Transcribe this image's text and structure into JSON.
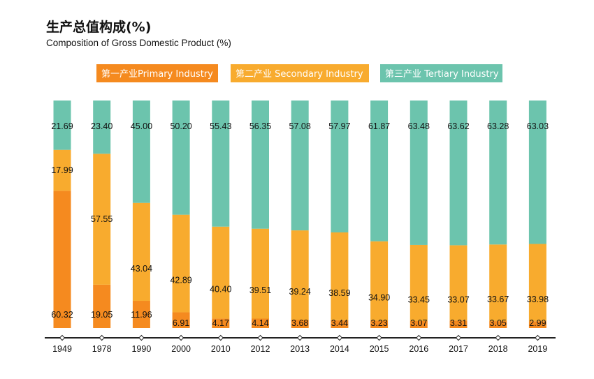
{
  "chart_data": {
    "type": "bar",
    "stacked": true,
    "title": "生产总值构成(%)",
    "subtitle": "Composition of Gross Domestic Product (%)",
    "categories": [
      "1949",
      "1978",
      "1990",
      "2000",
      "2010",
      "2012",
      "2013",
      "2014",
      "2015",
      "2016",
      "2017",
      "2018",
      "2019"
    ],
    "series": [
      {
        "name": "第一产业Primary Industry",
        "color": "#f58a1f",
        "values": [
          60.32,
          19.05,
          11.96,
          6.91,
          4.17,
          4.14,
          3.68,
          3.44,
          3.23,
          3.07,
          3.31,
          3.05,
          2.99
        ]
      },
      {
        "name": "第二产业 Secondary Industry",
        "color": "#f8ab2e",
        "values": [
          17.99,
          57.55,
          43.04,
          42.89,
          40.4,
          39.51,
          39.24,
          38.59,
          34.9,
          33.45,
          33.07,
          33.67,
          33.98
        ]
      },
      {
        "name": "第三产业 Tertiary Industry",
        "color": "#6cc4ad",
        "values": [
          21.69,
          23.4,
          45.0,
          50.2,
          55.43,
          56.35,
          57.08,
          57.97,
          61.87,
          63.48,
          63.62,
          63.28,
          63.03
        ]
      }
    ],
    "labels": {
      "primary": [
        "60.32",
        "19.05",
        "11.96",
        "6.91",
        "4.17",
        "4.14",
        "3.68",
        "3.44",
        "3.23",
        "3.07",
        "3.31",
        "3.05",
        "2.99"
      ],
      "secondary": [
        "17.99",
        "57.55",
        "43.04",
        "42.89",
        "40.40",
        "39.51",
        "39.24",
        "38.59",
        "34.90",
        "33.45",
        "33.07",
        "33.67",
        "33.98"
      ],
      "tertiary": [
        "21.69",
        "23.40",
        "45.00",
        "50.20",
        "55.43",
        "56.35",
        "57.08",
        "57.97",
        "61.87",
        "63.48",
        "63.62",
        "63.28",
        "63.03"
      ]
    },
    "ylim": [
      0,
      100
    ],
    "legend_position": "top",
    "grid": false
  }
}
